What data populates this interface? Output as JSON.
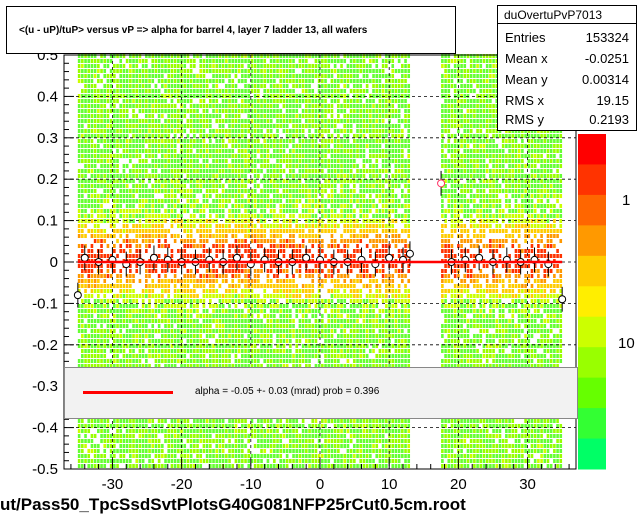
{
  "title": "<(u - uP)/tuP> versus   vP => alpha for barrel 4, layer 7 ladder 13, all wafers",
  "stats": {
    "name": "duOvertuPvP7013",
    "rows": [
      {
        "key": "Entries",
        "value": "153324"
      },
      {
        "key": "Mean x",
        "value": "-0.0251"
      },
      {
        "key": "Mean y",
        "value": "0.00314"
      },
      {
        "key": "RMS x",
        "value": "19.15"
      },
      {
        "key": "RMS y",
        "value": "0.2193"
      }
    ]
  },
  "fit": {
    "label": "alpha =   -0.05 +-  0.03 (mrad) prob = 0.396"
  },
  "footer": "ut/Pass50_TpcSsdSvtPlotsG40G081NFP25rCut0.5cm.root",
  "colors": {
    "fit_line": "#ff0000",
    "profile_marker": "#000000",
    "band_lo": "#7fff00",
    "band_hi": "#ff4000"
  },
  "chart_data": {
    "type": "heatmap",
    "x_axis": {
      "ticks": [
        -30,
        -20,
        -10,
        0,
        10,
        20,
        30
      ],
      "range": [
        -37,
        37
      ]
    },
    "y_axis": {
      "ticks": [
        -0.5,
        -0.4,
        -0.3,
        -0.2,
        -0.1,
        0,
        0.1,
        0.2,
        0.3,
        0.4,
        0.5
      ],
      "tick_labels": [
        "-0.5",
        "-0.4",
        "-0.3",
        "-0.2",
        "-0.1",
        "0",
        "0.1",
        "0.2",
        "0.3",
        "0.4",
        "0.5"
      ],
      "range": [
        -0.5,
        0.5
      ]
    },
    "color_scale": {
      "labels": [
        "1",
        "10"
      ],
      "log": true
    },
    "populated_x_ranges": [
      [
        -35,
        13
      ],
      [
        17.5,
        35
      ]
    ],
    "profile": {
      "x": [
        -35,
        -34,
        -32,
        -30,
        -28,
        -26,
        -24,
        -22,
        -20,
        -18,
        -16,
        -14,
        -12,
        -10,
        -8,
        -6,
        -4,
        -2,
        0,
        2,
        4,
        6,
        8,
        10,
        12,
        13,
        17.5,
        19,
        21,
        23,
        25,
        27,
        29,
        31,
        33,
        35
      ],
      "y": [
        -0.08,
        0.01,
        0.0,
        0.005,
        -0.005,
        0.0,
        0.01,
        0.005,
        0.0,
        0.0,
        0.005,
        0.0,
        0.01,
        -0.005,
        0.005,
        0.0,
        0.0,
        0.01,
        0.005,
        0.0,
        0.0,
        0.005,
        -0.005,
        0.01,
        0.005,
        0.02,
        0.19,
        0.0,
        0.005,
        0.01,
        0.0,
        0.005,
        0.0,
        0.005,
        -0.005,
        -0.09
      ]
    },
    "fit_line": {
      "y": 0.0,
      "x_range": [
        -35,
        35
      ]
    }
  }
}
